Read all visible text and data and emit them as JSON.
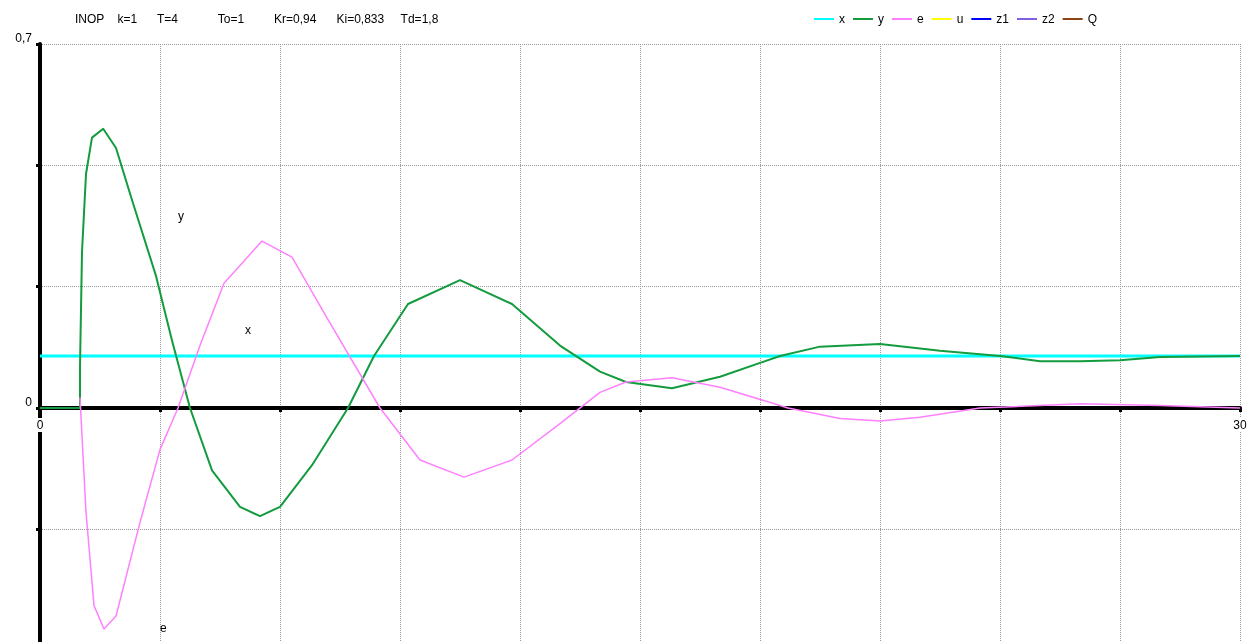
{
  "chart_data": {
    "type": "line",
    "title": "INOP    k=1      T=4            To=1         Kr=0,94      Ki=0,833     Td=1,8",
    "xlim": [
      0,
      30
    ],
    "ylim": [
      -0.45,
      0.7
    ],
    "xticks": [
      {
        "value": 0,
        "label": "0"
      },
      {
        "value": 3,
        "label": null
      },
      {
        "value": 6,
        "label": null
      },
      {
        "value": 9,
        "label": null
      },
      {
        "value": 12,
        "label": null
      },
      {
        "value": 15,
        "label": null
      },
      {
        "value": 18,
        "label": null
      },
      {
        "value": 21,
        "label": null
      },
      {
        "value": 24,
        "label": null
      },
      {
        "value": 27,
        "label": null
      },
      {
        "value": 30,
        "label": "30"
      }
    ],
    "yticks": [
      {
        "value": -0.2333,
        "label": null
      },
      {
        "value": 0,
        "label": "0"
      },
      {
        "value": 0.2333,
        "label": null
      },
      {
        "value": 0.4667,
        "label": null
      },
      {
        "value": 0.7,
        "label": "0,7"
      }
    ],
    "grid": true,
    "legend": "top right",
    "marker": "none",
    "line_style": "solid",
    "series": [
      {
        "name": "x",
        "color": "#00ffff",
        "x": [
          0,
          30
        ],
        "values": [
          0.1,
          0.1
        ]
      },
      {
        "name": "y",
        "color": "#139b3e",
        "x": [
          0,
          1,
          1,
          1.05,
          1.15,
          1.3,
          1.58,
          1.9,
          2.3,
          2.9,
          3.3,
          3.75,
          4.3,
          5,
          5.5,
          6,
          6.8,
          7.7,
          8.35,
          9.2,
          10.5,
          11.8,
          13,
          14,
          14.65,
          15.8,
          17,
          18.5,
          19.5,
          21,
          22.5,
          24,
          25,
          26,
          27,
          28,
          30
        ],
        "values": [
          0,
          0,
          0.08,
          0.3,
          0.45,
          0.52,
          0.537,
          0.5,
          0.4,
          0.254,
          0.13,
          0,
          -0.12,
          -0.19,
          -0.208,
          -0.19,
          -0.11,
          0,
          0.1,
          0.2,
          0.246,
          0.2,
          0.12,
          0.07,
          0.05,
          0.038,
          0.06,
          0.1,
          0.118,
          0.123,
          0.11,
          0.1,
          0.09,
          0.09,
          0.092,
          0.098,
          0.1
        ]
      },
      {
        "name": "e",
        "color": "#ff80ff",
        "x": [
          1,
          1.15,
          1.35,
          1.6,
          1.9,
          2.5,
          3,
          3.45,
          4,
          4.6,
          5.55,
          6.3,
          7.2,
          8.5,
          9.5,
          10.6,
          11.8,
          13,
          14,
          14.65,
          15.8,
          17,
          18.7,
          20,
          21,
          22,
          23.5,
          26,
          28,
          30
        ],
        "values": [
          0.02,
          -0.2,
          -0.38,
          -0.425,
          -0.4,
          -0.22,
          -0.08,
          0,
          0.12,
          0.24,
          0.321,
          0.29,
          0.17,
          0,
          -0.1,
          -0.133,
          -0.1,
          -0.03,
          0.03,
          0.05,
          0.058,
          0.04,
          0,
          -0.02,
          -0.025,
          -0.018,
          0,
          0.008,
          0.005,
          0
        ]
      },
      {
        "name": "u",
        "color": "#ffff00"
      },
      {
        "name": "z1",
        "color": "#0000ff"
      },
      {
        "name": "z2",
        "color": "#8060e0"
      },
      {
        "name": "Q",
        "color": "#8b4513"
      }
    ],
    "annotations": [
      "y",
      "x",
      "e"
    ]
  }
}
